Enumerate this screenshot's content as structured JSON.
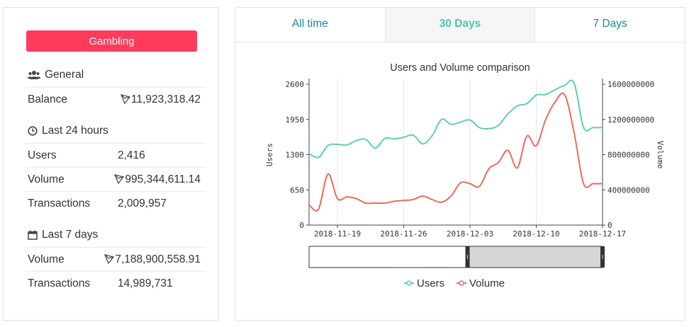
{
  "sidebar": {
    "category_label": "Gambling",
    "general": {
      "title": "General",
      "balance_label": "Balance",
      "balance_value": "11,923,318.42"
    },
    "last24": {
      "title": "Last 24 hours",
      "users_label": "Users",
      "users_value": "2,416",
      "volume_label": "Volume",
      "volume_value": "995,344,611.14",
      "tx_label": "Transactions",
      "tx_value": "2,009,957"
    },
    "last7": {
      "title": "Last 7 days",
      "volume_label": "Volume",
      "volume_value": "7,188,900,558.91",
      "tx_label": "Transactions",
      "tx_value": "14,989,731"
    }
  },
  "tabs": [
    {
      "label": "All time",
      "active": false
    },
    {
      "label": "30 Days",
      "active": true
    },
    {
      "label": "7 Days",
      "active": false
    }
  ],
  "chart_data": {
    "type": "line",
    "title": "Users and Volume comparison",
    "x": [
      "2018-11-16",
      "2018-11-17",
      "2018-11-18",
      "2018-11-19",
      "2018-11-20",
      "2018-11-21",
      "2018-11-22",
      "2018-11-23",
      "2018-11-24",
      "2018-11-25",
      "2018-11-26",
      "2018-11-27",
      "2018-11-28",
      "2018-11-29",
      "2018-11-30",
      "2018-12-01",
      "2018-12-02",
      "2018-12-03",
      "2018-12-04",
      "2018-12-05",
      "2018-12-06",
      "2018-12-07",
      "2018-12-08",
      "2018-12-09",
      "2018-12-10",
      "2018-12-11",
      "2018-12-12",
      "2018-12-13",
      "2018-12-14",
      "2018-12-15",
      "2018-12-16",
      "2018-12-17"
    ],
    "xticks": [
      "2018-11-19",
      "2018-11-26",
      "2018-12-03",
      "2018-12-10",
      "2018-12-17"
    ],
    "yleft": {
      "label": "Users",
      "ticks": [
        0,
        650,
        1300,
        1950,
        2600
      ],
      "lim": [
        0,
        2600
      ]
    },
    "yright": {
      "label": "Volume",
      "ticks": [
        0,
        400000000,
        800000000,
        1200000000,
        1600000000
      ],
      "lim": [
        0,
        1600000000
      ]
    },
    "series": [
      {
        "name": "Users",
        "axis": "left",
        "color": "#5ccfb8",
        "values": [
          1320,
          1250,
          1470,
          1490,
          1480,
          1560,
          1580,
          1420,
          1600,
          1590,
          1620,
          1660,
          1500,
          1650,
          1950,
          1860,
          1900,
          1940,
          1800,
          1780,
          1840,
          2050,
          2200,
          2240,
          2400,
          2410,
          2500,
          2580,
          2620,
          1800,
          1800,
          1800
        ]
      },
      {
        "name": "Volume",
        "axis": "right",
        "color": "#ec6b5a",
        "values": [
          230000000,
          180000000,
          580000000,
          300000000,
          320000000,
          300000000,
          250000000,
          250000000,
          250000000,
          270000000,
          280000000,
          290000000,
          330000000,
          290000000,
          260000000,
          330000000,
          480000000,
          470000000,
          440000000,
          640000000,
          710000000,
          850000000,
          650000000,
          1010000000,
          900000000,
          1200000000,
          1400000000,
          1480000000,
          1050000000,
          470000000,
          470000000,
          470000000
        ]
      }
    ],
    "legend": [
      "Users",
      "Volume"
    ],
    "grid": true,
    "range_slider": {
      "start": 0.54,
      "end": 1.0
    }
  }
}
